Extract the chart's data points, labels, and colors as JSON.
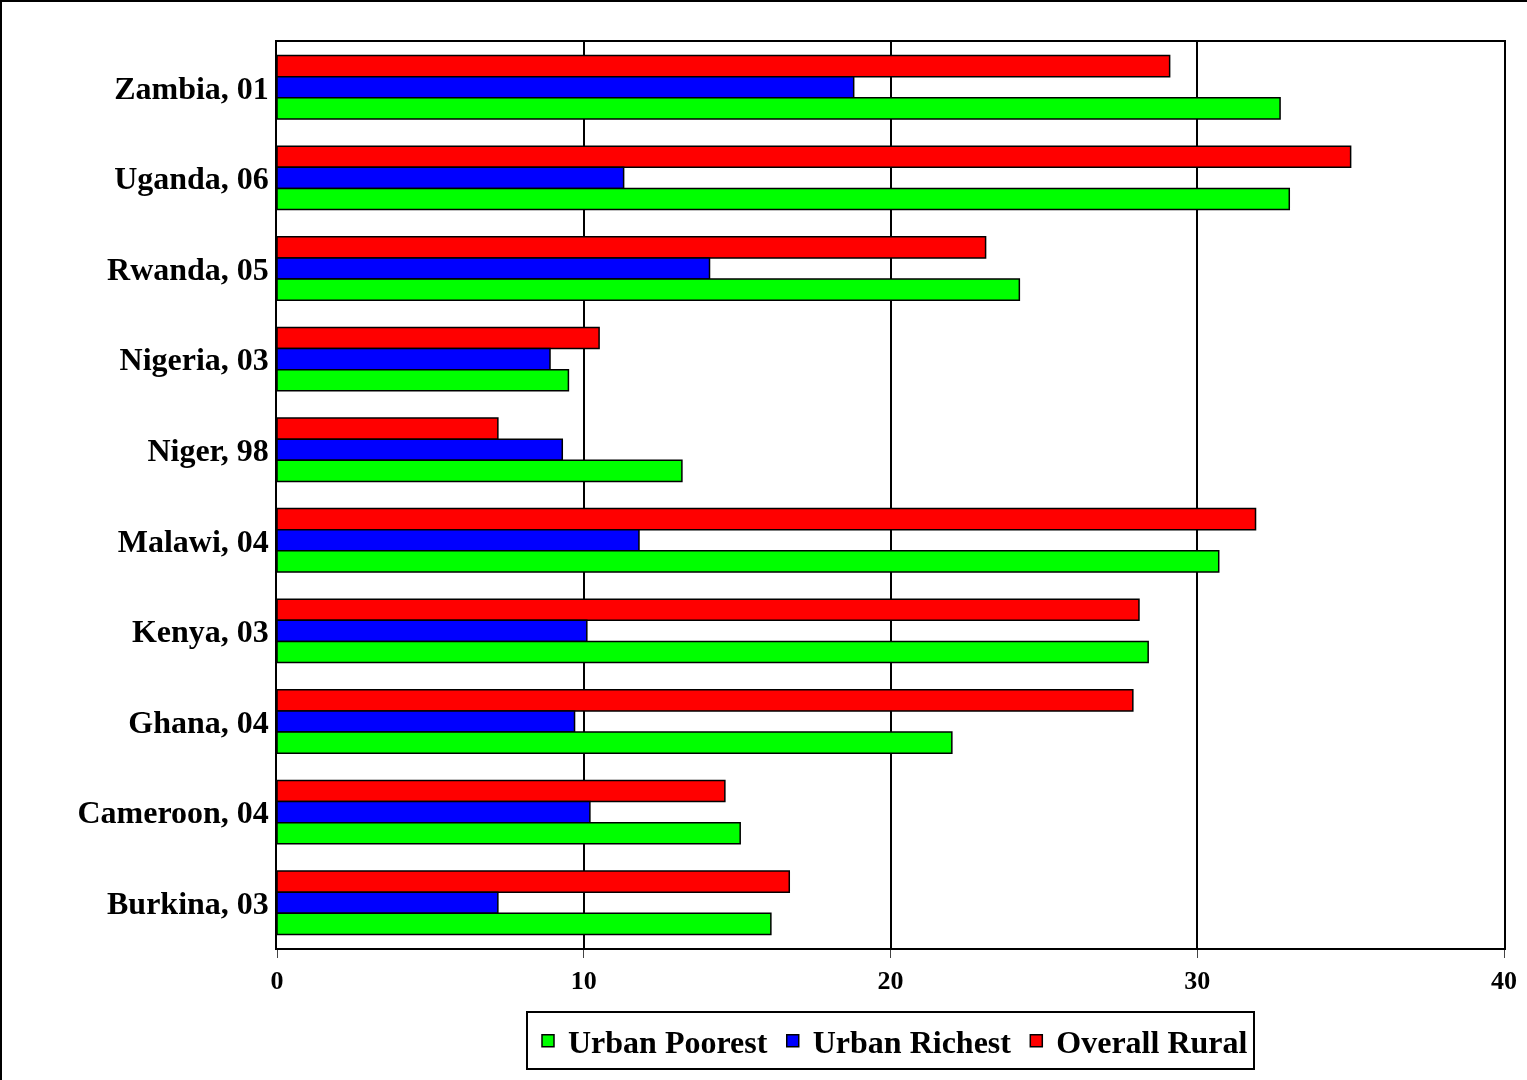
{
  "chart_data": {
    "type": "bar",
    "orientation": "horizontal",
    "categories": [
      "Zambia, 01",
      "Uganda, 06",
      "Rwanda, 05",
      "Nigeria, 03",
      "Niger, 98",
      "Malawi, 04",
      "Kenya, 03",
      "Ghana, 04",
      "Cameroon, 04",
      "Burkina, 03"
    ],
    "series": [
      {
        "name": "Urban Poorest",
        "color": "#00ff00",
        "values": [
          32.7,
          33.0,
          24.2,
          9.5,
          13.2,
          30.7,
          28.4,
          22.0,
          15.1,
          16.1
        ]
      },
      {
        "name": "Urban Richest",
        "color": "#0000ff",
        "values": [
          18.8,
          11.3,
          14.1,
          8.9,
          9.3,
          11.8,
          10.1,
          9.7,
          10.2,
          7.2
        ]
      },
      {
        "name": "Overall Rural",
        "color": "#ff0000",
        "values": [
          29.1,
          35.0,
          23.1,
          10.5,
          7.2,
          31.9,
          28.1,
          27.9,
          14.6,
          16.7
        ]
      }
    ],
    "xlim": [
      0,
      40
    ],
    "xticks": [
      0,
      10,
      20,
      30,
      40
    ],
    "grid": "x",
    "legend": "bottom"
  }
}
